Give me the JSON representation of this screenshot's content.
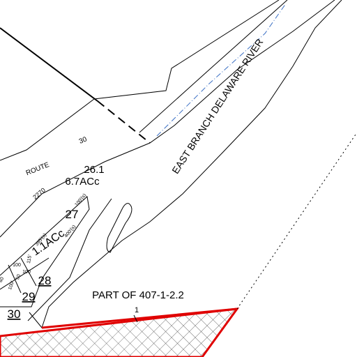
{
  "map": {
    "labels": [
      {
        "text": "EAST BRANCH DELAWARE RIVER"
      },
      {
        "text": "ROUTE"
      },
      {
        "text": "30"
      },
      {
        "text": "2270"
      },
      {
        "text": "26.1"
      },
      {
        "text": "6.7ACc"
      },
      {
        "text": "27"
      },
      {
        "text": "100'(s)"
      },
      {
        "text": "395'(s)"
      },
      {
        "text": "400'(s)"
      },
      {
        "text": "1.1ACc"
      },
      {
        "text": "115'"
      },
      {
        "text": "100"
      },
      {
        "text": "100"
      },
      {
        "text": "50"
      },
      {
        "text": "100'"
      },
      {
        "text": "40"
      },
      {
        "text": "28"
      },
      {
        "text": "29"
      },
      {
        "text": "30"
      },
      {
        "text": "PART OF 407-1-2.2"
      },
      {
        "text": "1"
      }
    ]
  }
}
